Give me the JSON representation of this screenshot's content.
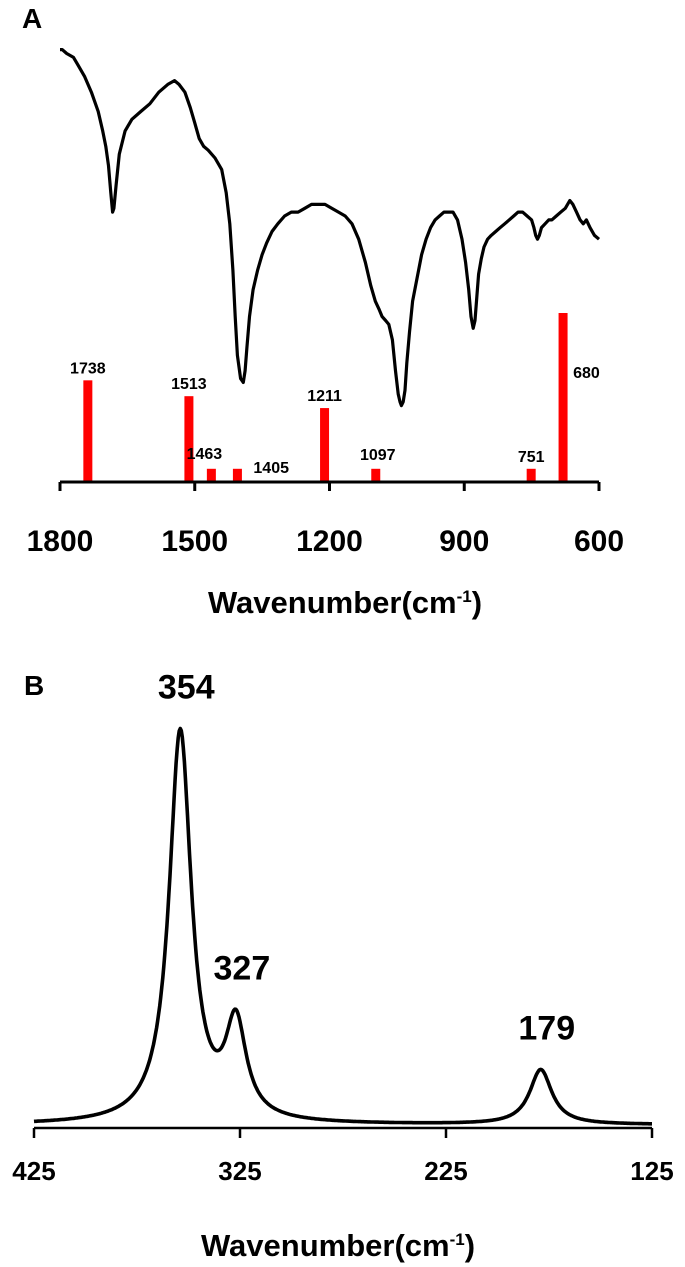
{
  "chart_data": [
    {
      "panel": "A",
      "type": "line",
      "xlabel": "Wavenumber(cm",
      "xlabel_sup": "-1",
      "xlabel_close": ")",
      "xlim": [
        1800,
        600
      ],
      "x_reversed": true,
      "x_ticks": [
        1800,
        1500,
        1200,
        900,
        600
      ],
      "spectrum_color": "#000000",
      "bar_color": "#ff0000",
      "y_axis_visible": false,
      "spectrum": {
        "x": [
          1800,
          1795,
          1785,
          1770,
          1760,
          1745,
          1730,
          1715,
          1705,
          1698,
          1692,
          1687,
          1683,
          1680,
          1675,
          1668,
          1655,
          1640,
          1620,
          1600,
          1580,
          1560,
          1545,
          1535,
          1522,
          1510,
          1500,
          1490,
          1480,
          1470,
          1455,
          1440,
          1430,
          1422,
          1415,
          1410,
          1405,
          1398,
          1392,
          1388,
          1384,
          1378,
          1370,
          1360,
          1350,
          1340,
          1328,
          1315,
          1300,
          1285,
          1270,
          1255,
          1240,
          1225,
          1210,
          1195,
          1180,
          1165,
          1150,
          1135,
          1120,
          1108,
          1098,
          1090,
          1083,
          1075,
          1068,
          1060,
          1053,
          1047,
          1043,
          1040,
          1036,
          1032,
          1028,
          1022,
          1015,
          1005,
          995,
          985,
          975,
          965,
          955,
          945,
          935,
          925,
          915,
          905,
          897,
          890,
          885,
          880,
          876,
          872,
          868,
          862,
          856,
          848,
          840,
          830,
          820,
          810,
          800,
          790,
          780,
          770,
          760,
          750,
          745,
          741,
          737,
          733,
          728,
          720,
          712,
          705,
          695,
          685,
          675,
          665,
          658,
          650,
          642,
          635,
          628,
          620,
          610,
          600
        ],
        "y": [
          0.97,
          0.97,
          0.96,
          0.95,
          0.93,
          0.9,
          0.86,
          0.81,
          0.76,
          0.72,
          0.67,
          0.6,
          0.55,
          0.56,
          0.62,
          0.7,
          0.76,
          0.79,
          0.81,
          0.83,
          0.86,
          0.88,
          0.89,
          0.88,
          0.86,
          0.82,
          0.78,
          0.74,
          0.72,
          0.71,
          0.69,
          0.66,
          0.6,
          0.52,
          0.4,
          0.28,
          0.18,
          0.12,
          0.11,
          0.14,
          0.2,
          0.28,
          0.35,
          0.4,
          0.44,
          0.47,
          0.5,
          0.52,
          0.54,
          0.55,
          0.55,
          0.56,
          0.57,
          0.57,
          0.57,
          0.56,
          0.55,
          0.54,
          0.52,
          0.48,
          0.42,
          0.36,
          0.32,
          0.3,
          0.28,
          0.27,
          0.26,
          0.22,
          0.14,
          0.08,
          0.06,
          0.05,
          0.06,
          0.09,
          0.16,
          0.24,
          0.32,
          0.38,
          0.44,
          0.48,
          0.51,
          0.53,
          0.54,
          0.55,
          0.55,
          0.55,
          0.53,
          0.48,
          0.42,
          0.35,
          0.28,
          0.25,
          0.27,
          0.33,
          0.39,
          0.43,
          0.46,
          0.48,
          0.49,
          0.5,
          0.51,
          0.52,
          0.53,
          0.54,
          0.55,
          0.55,
          0.54,
          0.53,
          0.51,
          0.49,
          0.48,
          0.49,
          0.51,
          0.52,
          0.53,
          0.53,
          0.54,
          0.55,
          0.56,
          0.58,
          0.57,
          0.55,
          0.53,
          0.52,
          0.53,
          0.51,
          0.49,
          0.48
        ]
      },
      "bars": [
        {
          "position": 1738,
          "height": 0.77,
          "label": "1738"
        },
        {
          "position": 1513,
          "height": 0.65,
          "label": "1513"
        },
        {
          "position": 1463,
          "height": 0.1,
          "label": "1463"
        },
        {
          "position": 1405,
          "height": 0.1,
          "label": "1405"
        },
        {
          "position": 1211,
          "height": 0.56,
          "label": "1211"
        },
        {
          "position": 1097,
          "height": 0.1,
          "label": "1097"
        },
        {
          "position": 751,
          "height": 0.1,
          "label": "751"
        },
        {
          "position": 680,
          "height": 1.28,
          "label": "680"
        }
      ]
    },
    {
      "panel": "B",
      "type": "line",
      "xlabel": "Wavenumber(cm",
      "xlabel_sup": "-1",
      "xlabel_close": ")",
      "xlim": [
        425,
        125
      ],
      "x_reversed": true,
      "x_ticks": [
        425,
        325,
        225,
        125
      ],
      "line_color": "#000000",
      "y_axis_visible": false,
      "peaks": [
        {
          "position": 354,
          "label": "354",
          "height": 1.0,
          "width": 6.5
        },
        {
          "position": 327,
          "label": "327",
          "height": 0.24,
          "width": 6
        },
        {
          "position": 179,
          "label": "179",
          "height": 0.14,
          "width": 6.5
        }
      ]
    }
  ]
}
